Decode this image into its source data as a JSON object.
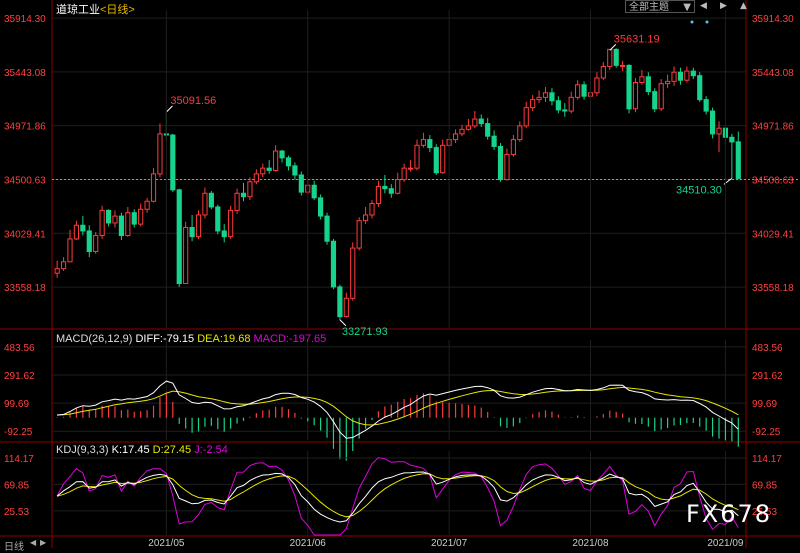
{
  "header": {
    "instrument": "道琼工业",
    "period_label": "<日线>",
    "view_menu_label": "全部主题",
    "watermark": "FX678",
    "bottom_tab": "日线"
  },
  "colors": {
    "up": "#ff3b3b",
    "down": "#16d38d",
    "yellow": "#e6e600",
    "white": "#ffffff",
    "magenta": "#e000e0",
    "grid": "#1e1e1e",
    "axis_text": "#ff4040",
    "date_text": "#cccccc"
  },
  "icons": [
    "dropdown-arrow-icon",
    "previous-icon",
    "next-icon",
    "collapse-icon"
  ],
  "chart_data": [
    {
      "type": "candlestick",
      "title": "道琼工业<日线>",
      "y_ticks": [
        35914.3,
        35443.08,
        34971.86,
        34500.63,
        34029.41,
        33558.18
      ],
      "ylim": [
        33200,
        35950
      ],
      "x_tick_labels": [
        "2021/05",
        "2021/06",
        "2021/07",
        "2021/08",
        "2021/09"
      ],
      "annotations": [
        {
          "label": "35091.56",
          "value": 35091.56
        },
        {
          "label": "33271.93",
          "value": 33271.93
        },
        {
          "label": "35631.19",
          "value": 35631.19
        },
        {
          "label": "34510.30",
          "value": 34510.3
        }
      ],
      "reference_line": 34500.63,
      "closes": [
        33720,
        33780,
        33980,
        34100,
        34050,
        33870,
        34010,
        34230,
        34120,
        34180,
        34010,
        34210,
        34110,
        34240,
        34310,
        34550,
        34900,
        34890,
        34410,
        33590,
        34080,
        34000,
        34190,
        34380,
        34260,
        34050,
        34000,
        34230,
        34380,
        34350,
        34480,
        34550,
        34600,
        34580,
        34750,
        34690,
        34620,
        34540,
        34390,
        34450,
        34340,
        34180,
        33960,
        33560,
        33300,
        33460,
        33900,
        34140,
        34190,
        34290,
        34440,
        34420,
        34380,
        34500,
        34600,
        34600,
        34800,
        34850,
        34780,
        34560,
        34800,
        34850,
        34900,
        34940,
        34970,
        35030,
        34990,
        34880,
        34790,
        34500,
        34720,
        34850,
        34970,
        35130,
        35200,
        35220,
        35260,
        35190,
        35110,
        35100,
        35220,
        35330,
        35230,
        35260,
        35390,
        35490,
        35640,
        35500,
        35500,
        35120,
        35350,
        35400,
        35270,
        35120,
        35340,
        35360,
        35440,
        35370,
        35450,
        35410,
        35200,
        35100,
        34900,
        34950,
        34870,
        34830,
        34510
      ],
      "highs": [
        33790,
        33820,
        34060,
        34140,
        34180,
        34100,
        34040,
        34270,
        34240,
        34230,
        34210,
        34260,
        34240,
        34290,
        34340,
        34600,
        34990,
        35091.56,
        34900,
        34420,
        34130,
        34190,
        34230,
        34430,
        34400,
        34280,
        34110,
        34270,
        34420,
        34470,
        34520,
        34590,
        34640,
        34670,
        34800,
        34760,
        34710,
        34650,
        34570,
        34510,
        34490,
        34370,
        34210,
        33980,
        33580,
        33510,
        33950,
        34170,
        34260,
        34320,
        34490,
        34540,
        34460,
        34560,
        34640,
        34670,
        34850,
        34910,
        34890,
        34810,
        34850,
        34910,
        34940,
        34980,
        35030,
        35100,
        35070,
        35040,
        34930,
        34820,
        34770,
        34890,
        35010,
        35180,
        35240,
        35280,
        35310,
        35300,
        35230,
        35170,
        35270,
        35370,
        35360,
        35310,
        35440,
        35530,
        35631.19,
        35650,
        35540,
        35510,
        35390,
        35460,
        35440,
        35300,
        35380,
        35420,
        35490,
        35480,
        35490,
        35480,
        35440,
        35230,
        35130,
        35010,
        34970,
        34900,
        34920
      ],
      "lows": [
        33640,
        33700,
        33780,
        33970,
        34010,
        33820,
        33850,
        33980,
        34090,
        34080,
        33970,
        34000,
        34080,
        34090,
        34210,
        34300,
        34520,
        34840,
        34390,
        33560,
        33590,
        33960,
        33980,
        34160,
        34240,
        34020,
        33950,
        33980,
        34200,
        34310,
        34320,
        34460,
        34520,
        34550,
        34570,
        34650,
        34580,
        34500,
        34360,
        34370,
        34320,
        34150,
        33930,
        33540,
        33271.93,
        33290,
        33440,
        33880,
        34110,
        34160,
        34260,
        34380,
        34340,
        34370,
        34480,
        34570,
        34580,
        34780,
        34740,
        34540,
        34550,
        34780,
        34820,
        34880,
        34930,
        34950,
        34960,
        34850,
        34760,
        34480,
        34490,
        34700,
        34830,
        34950,
        35100,
        35170,
        35180,
        35150,
        35080,
        35050,
        35080,
        35200,
        35200,
        35190,
        35230,
        35370,
        35460,
        35480,
        35450,
        35080,
        35090,
        35330,
        35240,
        35090,
        35100,
        35300,
        35320,
        35330,
        35350,
        35380,
        35180,
        35070,
        34860,
        34740,
        34810,
        34510.3,
        34510.3
      ]
    },
    {
      "type": "line",
      "title": "MACD(26,12,9)",
      "series": [
        {
          "name": "DIFF",
          "last": -79.15
        },
        {
          "name": "DEA",
          "last": 19.68
        },
        {
          "name": "MACD",
          "last": -197.65
        }
      ],
      "y_ticks": [
        483.56,
        291.62,
        99.69,
        -92.25
      ]
    },
    {
      "type": "line",
      "title": "KDJ(9,3,3)",
      "series": [
        {
          "name": "K",
          "last": 17.45
        },
        {
          "name": "D",
          "last": 27.45
        },
        {
          "name": "J",
          "last": -2.54
        }
      ],
      "y_ticks": [
        114.17,
        69.85,
        25.53
      ]
    }
  ],
  "labels": {
    "macd_title": "MACD(26,12,9)",
    "macd_diff": "DIFF:-79.15",
    "macd_dea": "DEA:19.68",
    "macd_macd": "MACD:-197.65",
    "kdj_title": "KDJ(9,3,3)",
    "kdj_k": "K:17.45",
    "kdj_d": "D:27.45",
    "kdj_j": "J:-2.54"
  }
}
